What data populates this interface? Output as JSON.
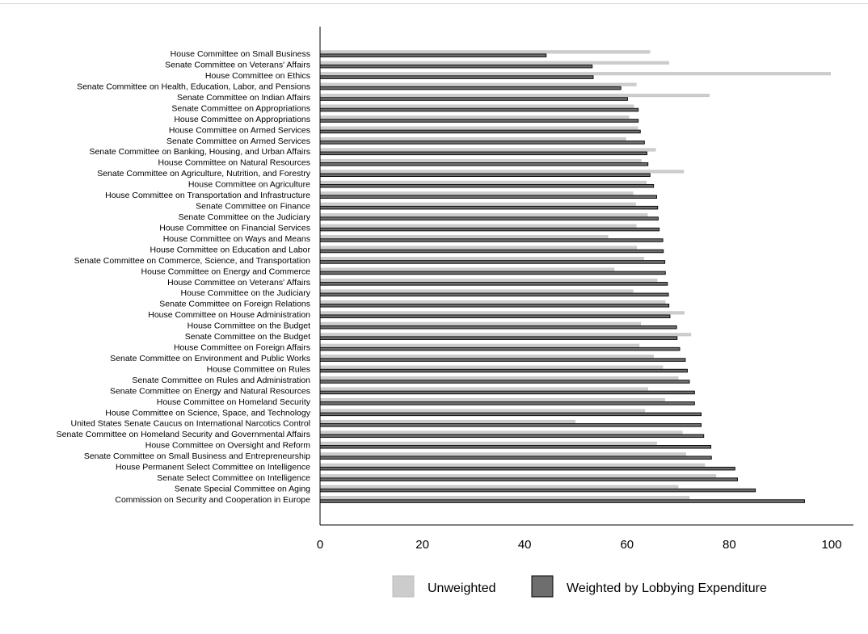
{
  "chart_data": {
    "type": "bar",
    "orientation": "horizontal",
    "categories": [
      "House Committee on Small Business",
      "Senate Committee on Veterans' Affairs",
      "House Committee on Ethics",
      "Senate Committee on Health, Education, Labor, and Pensions",
      "Senate Committee on Indian Affairs",
      "Senate Committee on Appropriations",
      "House Committee on Appropriations",
      "House Committee on Armed Services",
      "Senate Committee on Armed Services",
      "Senate Committee on Banking, Housing, and Urban Affairs",
      "House Committee on Natural Resources",
      "Senate Committee on Agriculture, Nutrition, and Forestry",
      "House Committee on Agriculture",
      "House Committee on Transportation and Infrastructure",
      "Senate Committee on Finance",
      "Senate Committee on the Judiciary",
      "House Committee on Financial Services",
      "House Committee on Ways and Means",
      "House Committee on Education and Labor",
      "Senate Committee on Commerce, Science, and Transportation",
      "House Committee on Energy and Commerce",
      "House Committee on Veterans' Affairs",
      "House Committee on the Judiciary",
      "Senate Committee on Foreign Relations",
      "House Committee on House Administration",
      "House Committee on the Budget",
      "Senate Committee on the Budget",
      "House Committee on Foreign Affairs",
      "Senate Committee on Environment and Public Works",
      "House Committee on Rules",
      "Senate Committee on Rules and Administration",
      "Senate Committee on Energy and Natural Resources",
      "House Committee on Homeland Security",
      "House Committee on Science, Space, and Technology",
      "United States Senate Caucus on International Narcotics Control",
      "Senate Committee on Homeland Security and Governmental Affairs",
      "House Committee on Oversight and Reform",
      "Senate Committee on Small Business and Entrepreneurship",
      "House Permanent Select Committee on Intelligence",
      "Senate Select Committee on Intelligence",
      "Senate Special Committee on Aging",
      "Commission on Security and Cooperation in Europe"
    ],
    "series": [
      {
        "name": "Unweighted",
        "color": "#cccccc",
        "values": [
          64.5,
          68.2,
          99.8,
          61.8,
          76.1,
          61.3,
          60.4,
          62.1,
          59.8,
          65.6,
          62.8,
          71.1,
          63.8,
          61.2,
          61.7,
          64.0,
          61.8,
          56.3,
          61.9,
          63.3,
          57.5,
          65.9,
          61.2,
          67.5,
          71.2,
          62.7,
          72.5,
          62.4,
          65.2,
          67.0,
          70.0,
          64.1,
          67.4,
          63.5,
          49.9,
          70.8,
          65.8,
          71.5,
          75.2,
          77.4,
          70.0,
          72.2
        ]
      },
      {
        "name": "Weighted by Lobbying Expenditure",
        "color": "#6e6e6e",
        "values": [
          44.2,
          53.2,
          53.4,
          58.8,
          60.1,
          62.2,
          62.2,
          62.6,
          63.4,
          63.9,
          64.1,
          64.5,
          65.2,
          65.8,
          66.0,
          66.1,
          66.3,
          67.0,
          67.1,
          67.4,
          67.5,
          67.9,
          68.1,
          68.2,
          68.4,
          69.7,
          69.8,
          70.3,
          71.4,
          71.8,
          72.2,
          73.2,
          73.2,
          74.5,
          74.5,
          75.0,
          76.4,
          76.5,
          81.1,
          81.6,
          85.1,
          94.7
        ]
      }
    ],
    "xlim": [
      0,
      100
    ],
    "xticks": [
      "0",
      "20",
      "40",
      "60",
      "80",
      "100"
    ],
    "legend_position": "bottom",
    "title": "",
    "xlabel": "",
    "ylabel": ""
  }
}
